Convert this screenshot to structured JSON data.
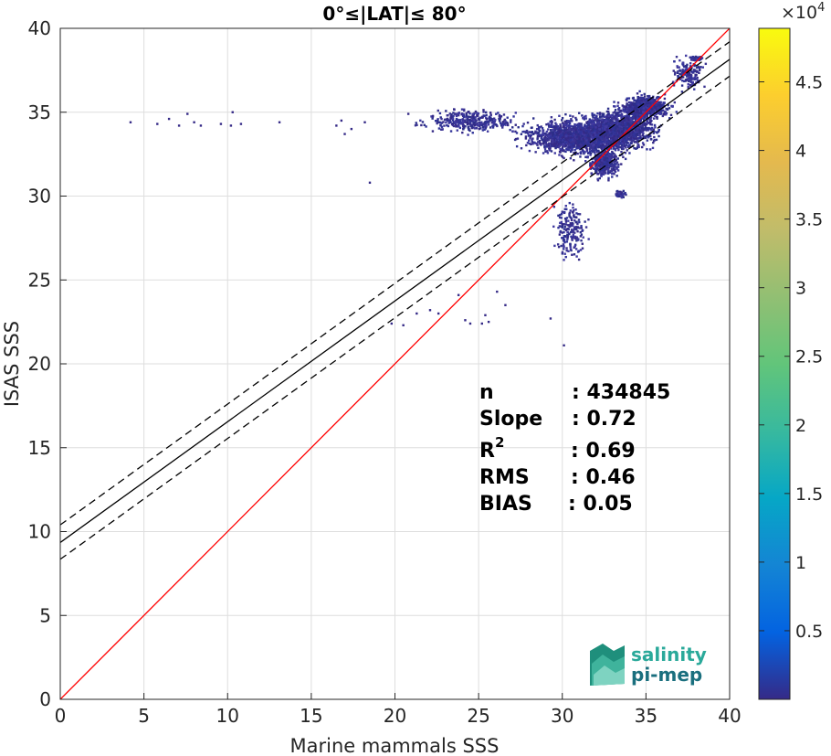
{
  "chart_data": {
    "type": "heatmap",
    "title": "0°≤|LAT|≤ 80°",
    "xlabel": "Marine mammals SSS",
    "ylabel": "ISAS SSS",
    "xlim": [
      0,
      40
    ],
    "ylim": [
      0,
      40
    ],
    "xticks": [
      "0",
      "5",
      "10",
      "15",
      "20",
      "25",
      "30",
      "35",
      "40"
    ],
    "yticks": [
      "0",
      "5",
      "10",
      "15",
      "20",
      "25",
      "30",
      "35",
      "40"
    ],
    "grid": true,
    "colorbar": {
      "colormap": "parula",
      "min": 0,
      "max": 48900,
      "ticks": [
        "0.5",
        "1",
        "1.5",
        "2",
        "2.5",
        "3",
        "3.5",
        "4",
        "4.5"
      ],
      "tick_values": [
        0.5,
        1,
        1.5,
        2,
        2.5,
        3,
        3.5,
        4,
        4.5
      ],
      "exponent_base": "×10",
      "exponent_power": "4"
    },
    "lines": {
      "identity": {
        "slope": 1,
        "intercept": 0,
        "color": "#ff0000"
      },
      "fit": {
        "slope": 0.72,
        "intercept": 9.35,
        "color": "#000000"
      },
      "fit_upper": {
        "slope": 0.72,
        "intercept": 10.4,
        "color": "#000000",
        "style": "dashed"
      },
      "fit_lower": {
        "slope": 0.72,
        "intercept": 8.35,
        "color": "#000000",
        "style": "dashed"
      }
    },
    "clusters": [
      {
        "x": 31.0,
        "y": 33.5,
        "sx": 2.8,
        "sy": 0.9,
        "n": 1500
      },
      {
        "x": 33.5,
        "y": 34.0,
        "sx": 1.8,
        "sy": 1.0,
        "n": 1300
      },
      {
        "x": 35.0,
        "y": 35.3,
        "sx": 1.2,
        "sy": 0.6,
        "n": 800
      },
      {
        "x": 32.5,
        "y": 32.0,
        "sx": 0.8,
        "sy": 0.8,
        "n": 350
      },
      {
        "x": 24.5,
        "y": 34.5,
        "sx": 2.5,
        "sy": 0.6,
        "n": 350
      },
      {
        "x": 30.5,
        "y": 28.0,
        "sx": 0.9,
        "sy": 1.4,
        "n": 180
      },
      {
        "x": 37.5,
        "y": 37.3,
        "sx": 0.8,
        "sy": 0.8,
        "n": 160
      },
      {
        "x": 38.0,
        "y": 38.2,
        "sx": 0.3,
        "sy": 0.1,
        "n": 80
      },
      {
        "x": 33.5,
        "y": 30.1,
        "sx": 0.3,
        "sy": 0.2,
        "n": 50
      }
    ],
    "points": [
      [
        4.2,
        34.4
      ],
      [
        5.8,
        34.3
      ],
      [
        6.5,
        34.6
      ],
      [
        7.1,
        34.2
      ],
      [
        7.6,
        34.9
      ],
      [
        8.0,
        34.4
      ],
      [
        8.4,
        34.2
      ],
      [
        9.6,
        34.3
      ],
      [
        10.2,
        34.2
      ],
      [
        10.3,
        35.0
      ],
      [
        10.8,
        34.3
      ],
      [
        13.1,
        34.4
      ],
      [
        16.5,
        34.2
      ],
      [
        16.8,
        34.5
      ],
      [
        17.4,
        34.0
      ],
      [
        18.2,
        34.4
      ],
      [
        18.5,
        30.8
      ],
      [
        17.0,
        33.7
      ],
      [
        20.8,
        34.9
      ],
      [
        22.6,
        23.0
      ],
      [
        22.1,
        23.2
      ],
      [
        23.8,
        24.1
      ],
      [
        24.2,
        22.6
      ],
      [
        24.5,
        22.4
      ],
      [
        25.4,
        22.9
      ],
      [
        25.6,
        22.5
      ],
      [
        26.1,
        24.3
      ],
      [
        29.3,
        22.7
      ],
      [
        30.1,
        21.1
      ],
      [
        20.5,
        22.3
      ],
      [
        19.8,
        22.4
      ],
      [
        21.3,
        23.0
      ],
      [
        26.6,
        23.5
      ],
      [
        25.2,
        22.4
      ]
    ]
  },
  "stats": [
    {
      "label": "n",
      "value": ": 434845"
    },
    {
      "label": "Slope",
      "value": ": 0.72"
    },
    {
      "label": "R",
      "sup": "2",
      "value": ": 0.69"
    },
    {
      "label": "RMS",
      "value": ": 0.46"
    },
    {
      "label": "BIAS",
      "value": ": 0.05"
    }
  ],
  "logo": {
    "line1": "salinity",
    "line2": "pi-mep"
  }
}
